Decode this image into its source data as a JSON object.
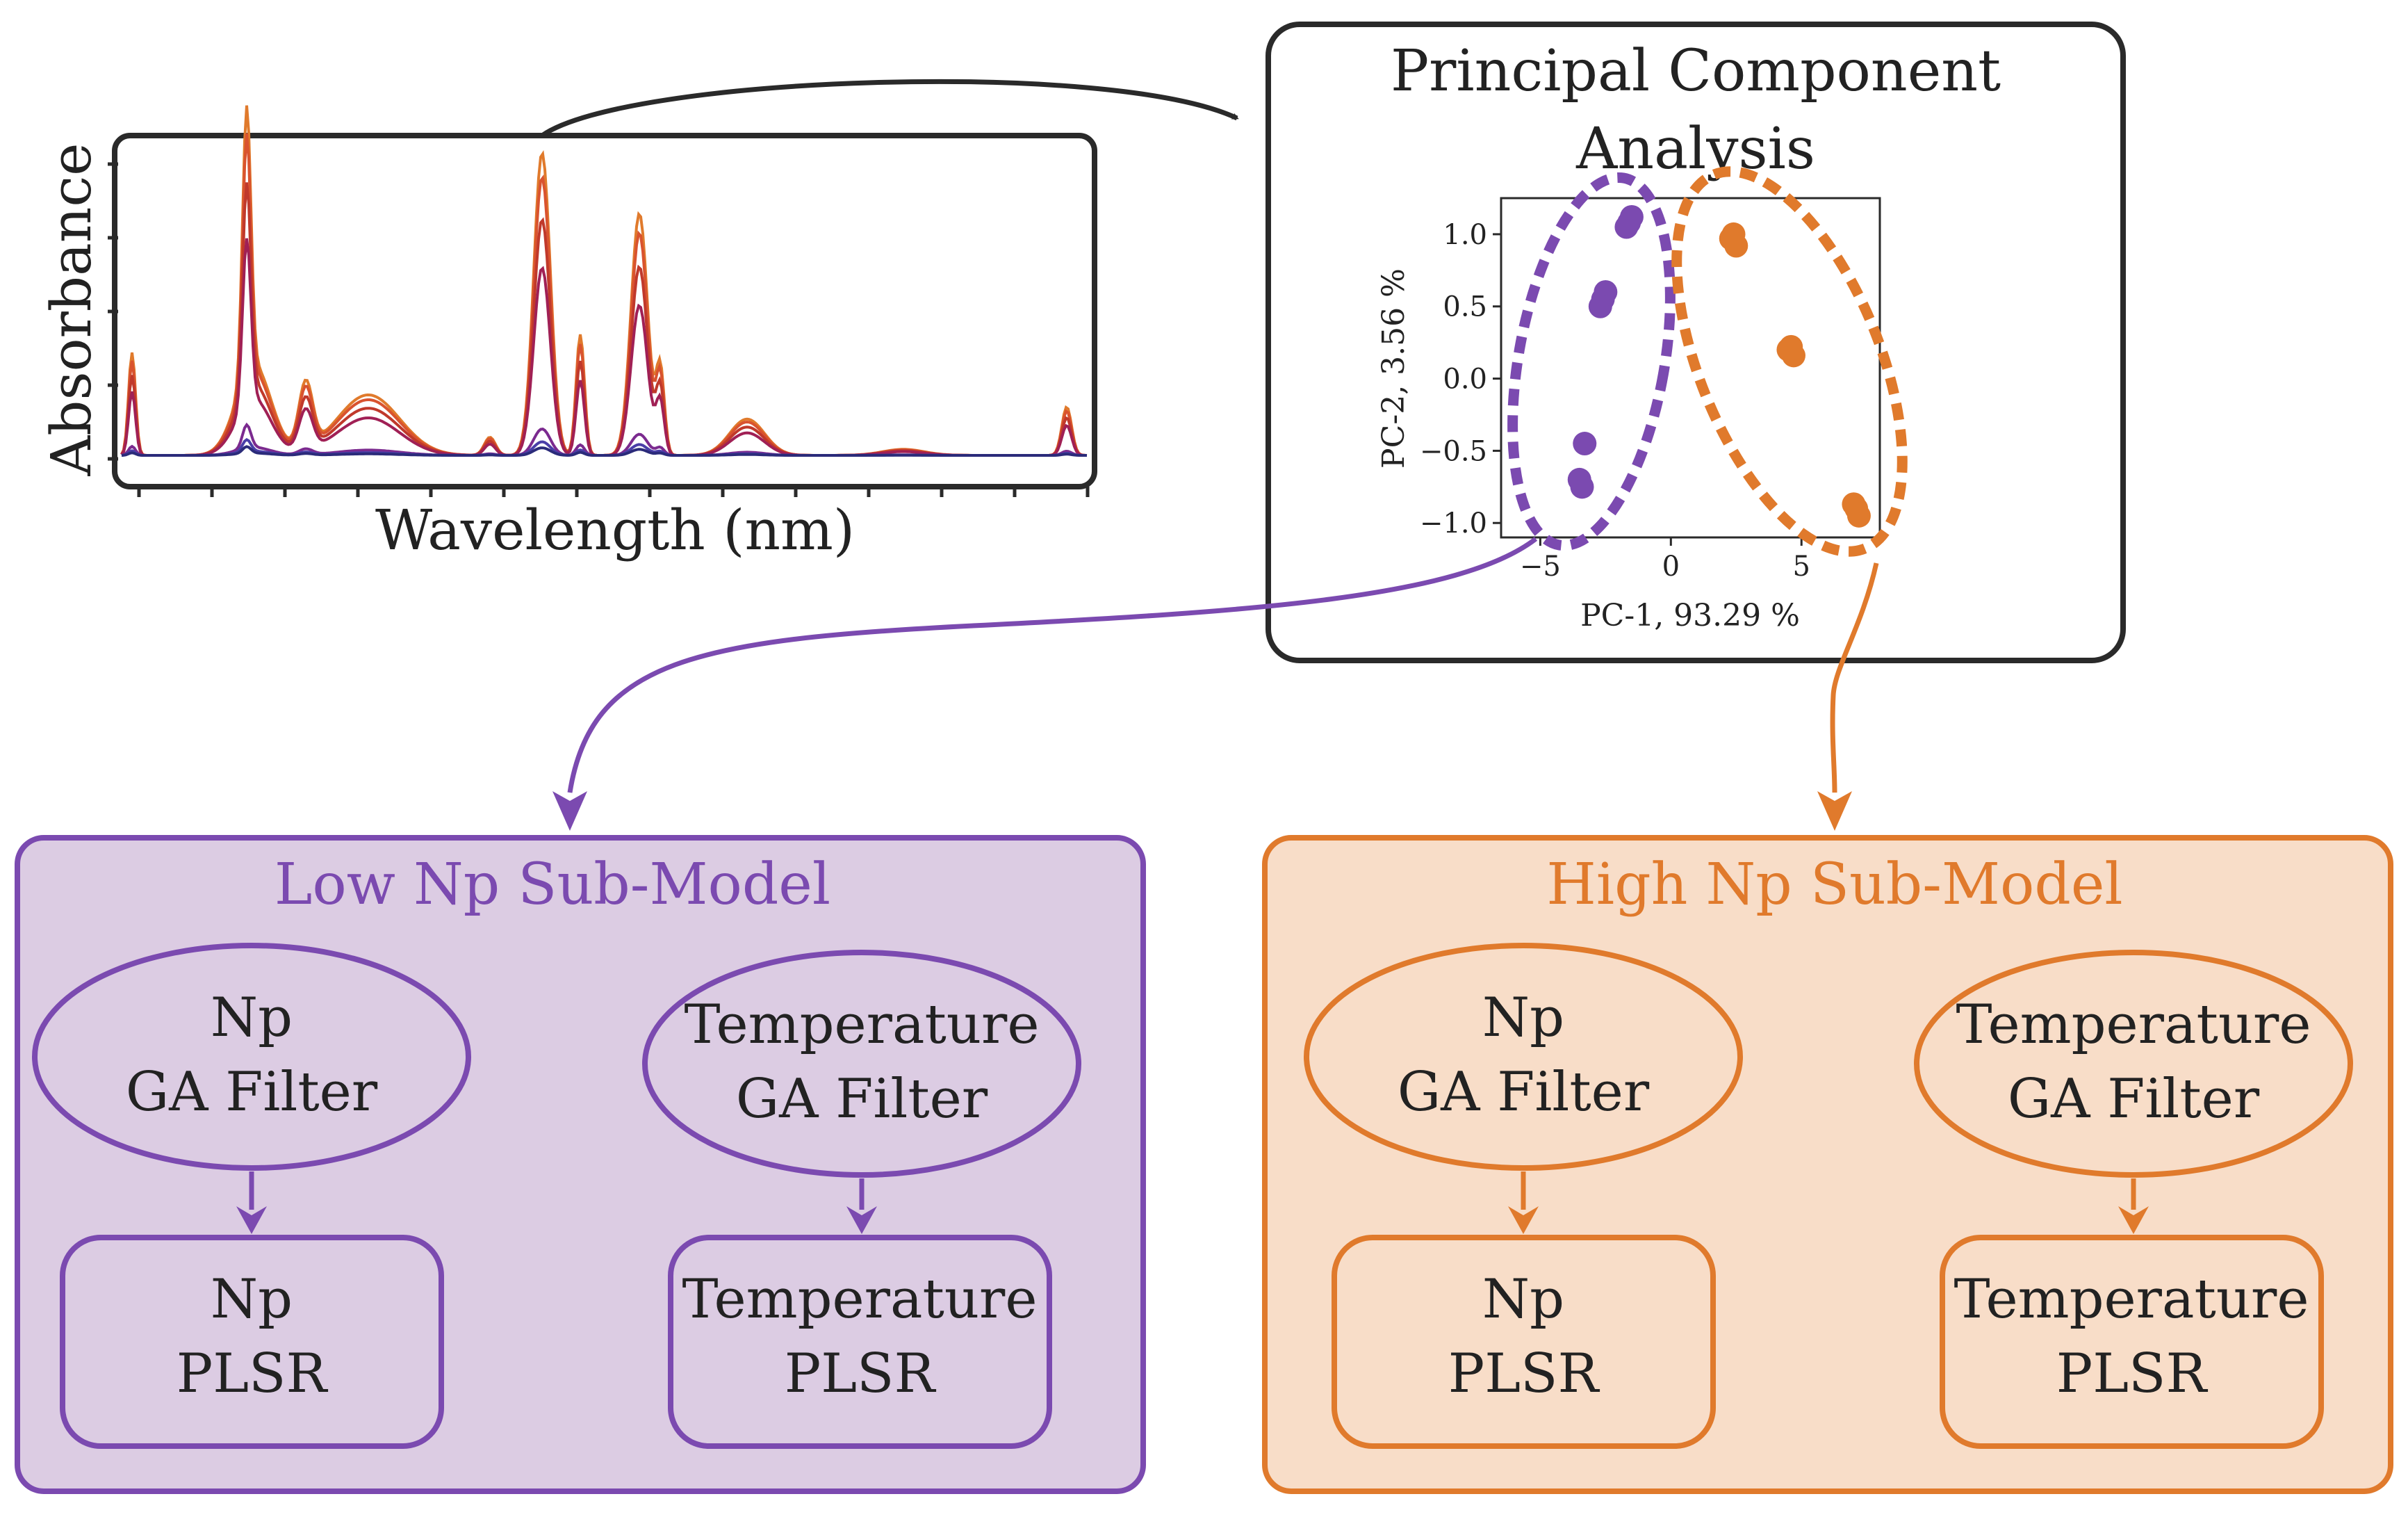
{
  "spectrum": {
    "xlabel": "Wavelength (nm)",
    "ylabel": "Absorbance",
    "line_colors": [
      "#e07a2c",
      "#d9532f",
      "#c0392b",
      "#a02055",
      "#7b2a8f",
      "#4a3ea8",
      "#2b2b7a"
    ]
  },
  "pca": {
    "title_line1": "Principal Component",
    "title_line2": "Analysis",
    "chart_data": {
      "type": "scatter",
      "xlabel": "PC-1, 93.29 %",
      "ylabel": "PC-2, 3.56 %",
      "xlim": [
        -6.5,
        8
      ],
      "ylim": [
        -1.1,
        1.25
      ],
      "xticks": [
        -5,
        0,
        5
      ],
      "yticks": [
        1.0,
        0.5,
        0.0,
        -0.5,
        -1.0
      ],
      "series": [
        {
          "name": "Low Np",
          "color": "#7b4ab0",
          "x": [
            -1.6,
            -1.5,
            -1.7,
            -2.6,
            -2.5,
            -2.7,
            -3.3,
            -3.5,
            -3.4
          ],
          "y": [
            1.08,
            1.12,
            1.05,
            0.55,
            0.6,
            0.5,
            -0.45,
            -0.7,
            -0.75
          ]
        },
        {
          "name": "High Np",
          "color": "#e07a2c",
          "x": [
            2.3,
            2.5,
            2.4,
            4.6,
            4.7,
            4.5,
            7.0,
            7.2,
            7.1
          ],
          "y": [
            0.97,
            0.92,
            1.0,
            0.22,
            0.16,
            0.2,
            -0.87,
            -0.95,
            -0.9
          ]
        }
      ]
    }
  },
  "colors": {
    "purple": "#7b4ab0",
    "purple_fill": "#dccce3",
    "orange": "#e07a2c",
    "orange_fill": "#f8ddc8",
    "dark": "#2a2a2a"
  },
  "low_model": {
    "title": "Low Np Sub-Model",
    "np_filter_line1": "Np",
    "np_filter_line2": "GA Filter",
    "temp_filter_line1": "Temperature",
    "temp_filter_line2": "GA Filter",
    "np_plsr_line1": "Np",
    "np_plsr_line2": "PLSR",
    "temp_plsr_line1": "Temperature",
    "temp_plsr_line2": "PLSR"
  },
  "high_model": {
    "title": "High Np Sub-Model",
    "np_filter_line1": "Np",
    "np_filter_line2": "GA Filter",
    "temp_filter_line1": "Temperature",
    "temp_filter_line2": "GA Filter",
    "np_plsr_line1": "Np",
    "np_plsr_line2": "PLSR",
    "temp_plsr_line1": "Temperature",
    "temp_plsr_line2": "PLSR"
  }
}
